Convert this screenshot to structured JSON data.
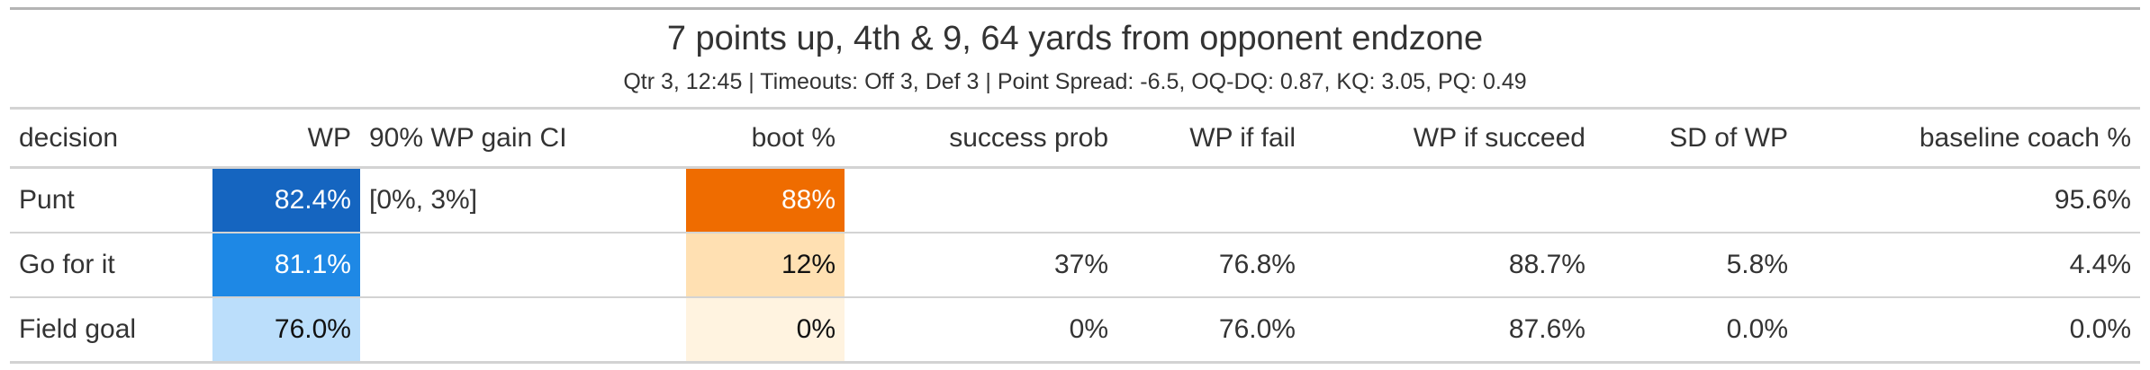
{
  "header": {
    "title": "7 points up, 4th & 9, 64 yards from opponent endzone",
    "subtitle": "Qtr 3, 12:45 | Timeouts: Off 3, Def 3 | Point Spread: -6.5, OQ-DQ: 0.87, KQ: 3.05, PQ: 0.49"
  },
  "table": {
    "columns": [
      "decision",
      "WP",
      "90% WP gain CI",
      "boot %",
      "success prob",
      "WP if fail",
      "WP if succeed",
      "SD of WP",
      "baseline coach %"
    ],
    "rows": [
      {
        "decision": "Punt",
        "wp": "82.4%",
        "ci": "[0%, 3%]",
        "boot": "88%",
        "success_prob": "",
        "wp_fail": "",
        "wp_succeed": "",
        "sd_wp": "",
        "baseline": "95.6%"
      },
      {
        "decision": "Go for it",
        "wp": "81.1%",
        "ci": "",
        "boot": "12%",
        "success_prob": "37%",
        "wp_fail": "76.8%",
        "wp_succeed": "88.7%",
        "sd_wp": "5.8%",
        "baseline": "4.4%"
      },
      {
        "decision": "Field goal",
        "wp": "76.0%",
        "ci": "",
        "boot": "0%",
        "success_prob": "0%",
        "wp_fail": "76.0%",
        "wp_succeed": "87.6%",
        "sd_wp": "0.0%",
        "baseline": "0.0%"
      }
    ]
  },
  "colors": {
    "wp_scale": [
      "#1565c0",
      "#1e88e5",
      "#bbdefb"
    ],
    "boot_scale": [
      "#ef6c00",
      "#ffe0b2",
      "#fff3e0"
    ],
    "rule": "#d3d3d3"
  }
}
